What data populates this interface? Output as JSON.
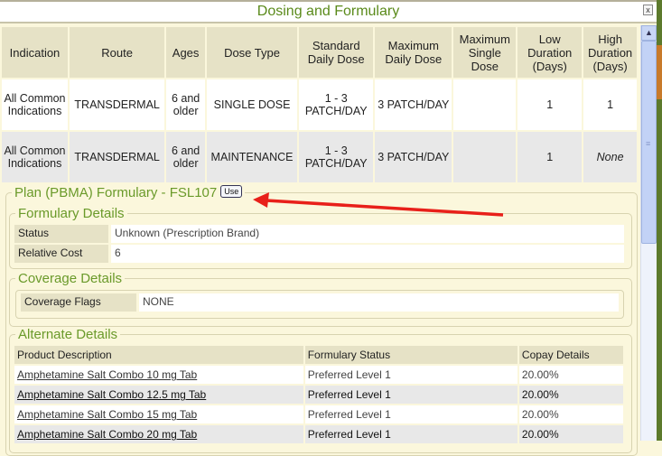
{
  "window": {
    "title": "Dosing and Formulary",
    "close_label": "x"
  },
  "dosing": {
    "headers": [
      "Indication",
      "Route",
      "Ages",
      "Dose Type",
      "Standard Daily Dose",
      "Maximum Daily Dose",
      "Maximum Single Dose",
      "Low Duration (Days)",
      "High Duration (Days)"
    ],
    "rows": [
      [
        "All Common Indications",
        "TRANSDERMAL",
        "6 and older",
        "SINGLE DOSE",
        "1 - 3 PATCH/DAY",
        "3 PATCH/DAY",
        "",
        "1",
        "1"
      ],
      [
        "All Common Indications",
        "TRANSDERMAL",
        "6 and older",
        "MAINTENANCE",
        "1 - 3 PATCH/DAY",
        "3 PATCH/DAY",
        "",
        "1",
        "None"
      ]
    ]
  },
  "plan": {
    "title": "Plan (PBMA) Formulary - FSL107",
    "use_label": "Use",
    "formulary_details": {
      "title": "Formulary Details",
      "status_label": "Status",
      "status_value": "Unknown (Prescription Brand)",
      "cost_label": "Relative Cost",
      "cost_value": "6"
    },
    "coverage_details": {
      "title": "Coverage Details",
      "flags_label": "Coverage Flags",
      "flags_value": "NONE"
    },
    "alternate_details": {
      "title": "Alternate Details",
      "headers": [
        "Product Description",
        "Formulary Status",
        "Copay Details"
      ],
      "rows": [
        [
          "Amphetamine Salt Combo 10 mg Tab",
          "Preferred Level 1",
          "20.00%"
        ],
        [
          "Amphetamine Salt Combo 12.5 mg Tab",
          "Preferred Level 1",
          "20.00%"
        ],
        [
          "Amphetamine Salt Combo 15 mg Tab",
          "Preferred Level 1",
          "20.00%"
        ],
        [
          "Amphetamine Salt Combo 20 mg Tab",
          "Preferred Level 1",
          "20.00%"
        ]
      ]
    }
  },
  "colors": {
    "accent_green": "#6a9a2a",
    "annotation_arrow": "#e8201a"
  }
}
